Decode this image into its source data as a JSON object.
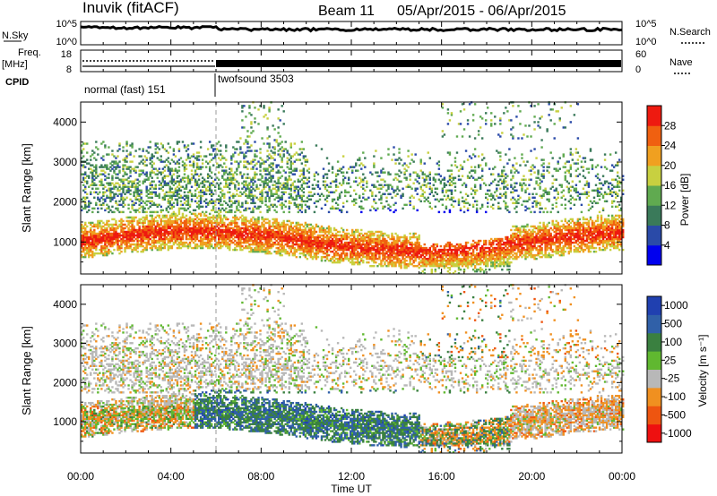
{
  "header": {
    "station": "Inuvik (fitACF)",
    "beam": "Beam 11",
    "date_range": "05/Apr/2015 - 06/Apr/2015"
  },
  "nsky_panel": {
    "left_label": "N.Sky",
    "left_ticks": [
      "10^5",
      "10^0"
    ],
    "right_ticks": [
      "10^5",
      "10^0"
    ],
    "right_label": "N.Search"
  },
  "freq_panel": {
    "left_label_1": "Freq.",
    "left_label_2": "[MHz]",
    "left_ticks": [
      "18",
      "8"
    ],
    "right_ticks": [
      "60",
      "0"
    ],
    "right_label": "Nave"
  },
  "cpid": {
    "label": "CPID",
    "segments": [
      {
        "name": "normal (fast) 151",
        "start_hour": 0,
        "end_hour": 6
      },
      {
        "name": "twofsound 3503",
        "start_hour": 6,
        "end_hour": 24
      }
    ]
  },
  "xaxis": {
    "title": "Time UT",
    "tick_labels": [
      "00:00",
      "04:00",
      "08:00",
      "12:00",
      "16:00",
      "20:00",
      "00:00"
    ]
  },
  "colors": {
    "power": [
      "#0000ee",
      "#2a4aa8",
      "#3a7a5a",
      "#60aa50",
      "#c8d040",
      "#f0a020",
      "#f06010",
      "#ee1a10"
    ],
    "velocity": [
      "#ee1010",
      "#ee5510",
      "#f09020",
      "#b8b8b8",
      "#60b830",
      "#3a8040",
      "#3060a8",
      "#2040b0"
    ]
  },
  "chart_data": [
    {
      "type": "heatmap",
      "title": "",
      "xlabel": "Time UT",
      "ylabel": "Slant Range [km]",
      "x_range_hours": [
        0,
        24
      ],
      "ylim": [
        200,
        4500
      ],
      "y_ticks": [
        1000,
        2000,
        3000,
        4000
      ],
      "colorbar": {
        "label": "Power [dB]",
        "ticks": [
          "4",
          "8",
          "12",
          "16",
          "20",
          "24",
          "28"
        ],
        "range": [
          0,
          32
        ]
      }
    },
    {
      "type": "heatmap",
      "title": "",
      "xlabel": "Time UT",
      "ylabel": "Slant Range [km]",
      "x_range_hours": [
        0,
        24
      ],
      "ylim": [
        200,
        4500
      ],
      "y_ticks": [
        1000,
        2000,
        3000,
        4000
      ],
      "colorbar": {
        "label": "Velocity [m s⁻¹]",
        "ticks": [
          "1000",
          "500",
          "100",
          "25",
          "-25",
          "-100",
          "-500",
          "-1000"
        ]
      }
    }
  ]
}
